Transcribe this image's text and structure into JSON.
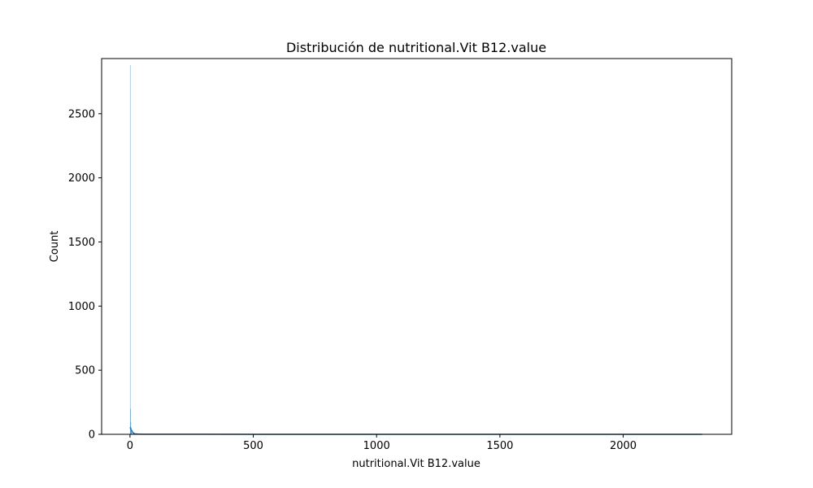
{
  "chart_data": {
    "type": "bar",
    "title": "Distribución de nutritional.Vit B12.value",
    "xlabel": "nutritional.Vit B12.value",
    "ylabel": "Count",
    "xlim": [
      -115,
      2440
    ],
    "ylim": [
      0,
      2930
    ],
    "xticks": [
      0,
      500,
      1000,
      1500,
      2000
    ],
    "yticks": [
      0,
      500,
      1000,
      1500,
      2000,
      2500
    ],
    "grid": false,
    "colors": {
      "bar_fill": "#1f77b4",
      "kde_line": "#1f77b4",
      "axis": "#000000"
    },
    "histogram": {
      "bin_width": 1,
      "bins": [
        {
          "x0": 0,
          "x1": 1,
          "count": 2880
        },
        {
          "x0": 1,
          "x1": 2,
          "count": 200
        },
        {
          "x0": 2,
          "x1": 3,
          "count": 95
        },
        {
          "x0": 3,
          "x1": 4,
          "count": 55
        },
        {
          "x0": 4,
          "x1": 5,
          "count": 30
        },
        {
          "x0": 5,
          "x1": 6,
          "count": 18
        },
        {
          "x0": 6,
          "x1": 8,
          "count": 10
        },
        {
          "x0": 8,
          "x1": 12,
          "count": 5
        },
        {
          "x0": 12,
          "x1": 20,
          "count": 3
        },
        {
          "x0": 2320,
          "x1": 2322,
          "count": 1
        }
      ]
    },
    "kde": {
      "x": [
        0,
        3,
        6,
        10,
        15,
        20,
        30,
        50,
        100,
        500,
        1000,
        1500,
        2000,
        2320
      ],
      "y": [
        55,
        45,
        32,
        18,
        8,
        4,
        2,
        1,
        0.5,
        0.3,
        0.2,
        0.2,
        0.2,
        0.2
      ]
    }
  }
}
